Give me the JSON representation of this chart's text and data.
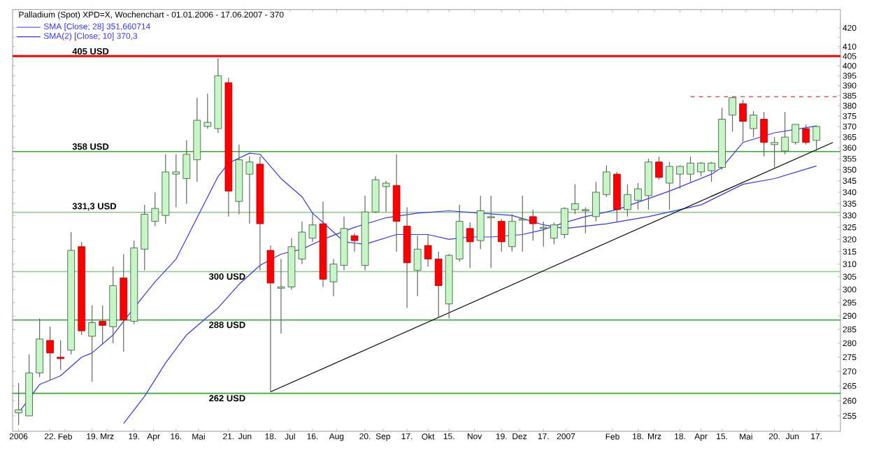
{
  "chart_data": {
    "type": "candlestick",
    "title": "Palladium (Spot) XPD=X, Wochenchart - 01.01.2006 - 17.06.2007 - 370",
    "x": [
      "2006-01-01",
      "2006-01-08",
      "2006-01-15",
      "2006-01-22",
      "2006-01-29",
      "2006-02-05",
      "2006-02-12",
      "2006-02-19",
      "2006-02-26",
      "2006-03-05",
      "2006-03-12",
      "2006-03-19",
      "2006-03-26",
      "2006-04-02",
      "2006-04-09",
      "2006-04-16",
      "2006-04-23",
      "2006-04-30",
      "2006-05-07",
      "2006-05-14",
      "2006-05-21",
      "2006-05-28",
      "2006-06-04",
      "2006-06-11",
      "2006-06-18",
      "2006-06-25",
      "2006-07-02",
      "2006-07-09",
      "2006-07-16",
      "2006-07-23",
      "2006-07-30",
      "2006-08-06",
      "2006-08-13",
      "2006-08-20",
      "2006-08-27",
      "2006-09-03",
      "2006-09-10",
      "2006-09-17",
      "2006-09-24",
      "2006-10-01",
      "2006-10-08",
      "2006-10-15",
      "2006-10-22",
      "2006-10-29",
      "2006-11-05",
      "2006-11-12",
      "2006-11-19",
      "2006-11-26",
      "2006-12-03",
      "2006-12-10",
      "2006-12-17",
      "2006-12-24",
      "2006-12-31",
      "2007-01-07",
      "2007-01-14",
      "2007-01-21",
      "2007-01-28",
      "2007-02-04",
      "2007-02-11",
      "2007-02-18",
      "2007-02-25",
      "2007-03-04",
      "2007-03-11",
      "2007-03-18",
      "2007-03-25",
      "2007-04-01",
      "2007-04-08",
      "2007-04-15",
      "2007-04-22",
      "2007-04-29",
      "2007-05-06",
      "2007-05-13",
      "2007-05-20",
      "2007-05-27",
      "2007-06-03",
      "2007-06-10",
      "2007-06-17"
    ],
    "ohlc": [
      [
        256,
        266,
        252,
        257
      ],
      [
        255,
        276,
        255,
        269.5
      ],
      [
        269.5,
        289,
        268,
        281.5
      ],
      [
        281,
        286,
        267,
        276.5
      ],
      [
        275,
        281,
        270.5,
        274.5
      ],
      [
        277.5,
        323,
        276,
        315.5
      ],
      [
        317,
        319,
        283,
        284.5
      ],
      [
        282.5,
        294,
        266.5,
        287.5
      ],
      [
        288,
        294,
        279.5,
        286.5
      ],
      [
        286,
        309,
        280,
        301.5
      ],
      [
        304.5,
        314,
        277,
        288.5
      ],
      [
        288,
        319.5,
        287,
        316.5
      ],
      [
        316,
        334.5,
        307.5,
        330.5
      ],
      [
        327.5,
        340,
        325.5,
        333
      ],
      [
        330,
        357,
        326.5,
        349
      ],
      [
        348,
        357,
        333.5,
        349
      ],
      [
        346,
        363.5,
        335,
        357
      ],
      [
        354.5,
        384,
        344.5,
        373
      ],
      [
        370,
        386,
        369,
        372
      ],
      [
        369,
        404,
        367,
        395
      ],
      [
        391.5,
        394,
        329.5,
        340.5
      ],
      [
        336,
        361.5,
        330.5,
        354.5
      ],
      [
        348,
        356,
        326.5,
        353.5
      ],
      [
        352.5,
        356,
        307.5,
        326.5
      ],
      [
        315.5,
        317.5,
        263,
        302.5
      ],
      [
        300.5,
        312,
        283.5,
        301
      ],
      [
        301,
        320.5,
        300,
        317
      ],
      [
        312,
        327.5,
        310,
        323
      ],
      [
        320.5,
        331.5,
        319,
        326
      ],
      [
        326.5,
        336,
        301,
        304
      ],
      [
        303,
        312,
        297.5,
        310
      ],
      [
        309.5,
        329.5,
        307.5,
        324.5
      ],
      [
        321.5,
        322.5,
        315,
        319.5
      ],
      [
        309.5,
        338.5,
        307.5,
        331.5
      ],
      [
        331.5,
        347,
        331,
        345.5
      ],
      [
        342.5,
        345,
        331.5,
        344
      ],
      [
        343,
        357,
        315,
        327.5
      ],
      [
        325.5,
        333.5,
        293,
        310.5
      ],
      [
        307.5,
        321.5,
        297.5,
        316
      ],
      [
        317.5,
        322,
        309,
        312
      ],
      [
        312,
        315,
        289.5,
        301.5
      ],
      [
        294.5,
        314,
        289,
        313.5
      ],
      [
        312,
        334.5,
        311,
        327.5
      ],
      [
        324.5,
        327,
        308.5,
        319
      ],
      [
        319.5,
        338.5,
        316,
        332
      ],
      [
        329,
        338.5,
        308.5,
        329.5
      ],
      [
        327.5,
        328.5,
        315,
        319
      ],
      [
        317,
        330.5,
        315,
        327.5
      ],
      [
        328,
        338.5,
        315,
        328.5
      ],
      [
        329.5,
        332.5,
        319.5,
        326.5
      ],
      [
        324.5,
        327.5,
        317,
        325
      ],
      [
        320.5,
        327,
        318,
        326
      ],
      [
        322,
        333.5,
        320.5,
        333
      ],
      [
        332.5,
        343.5,
        330.5,
        335
      ],
      [
        332,
        333.5,
        322.5,
        332.5
      ],
      [
        329.5,
        344.5,
        327.5,
        340
      ],
      [
        339,
        352,
        338,
        349
      ],
      [
        348,
        349,
        327.5,
        332.5
      ],
      [
        332.5,
        343.5,
        329.5,
        339
      ],
      [
        336.5,
        344,
        332.5,
        341.5
      ],
      [
        338.5,
        355,
        332.5,
        353.5
      ],
      [
        353.5,
        356,
        345.5,
        346.5
      ],
      [
        344,
        353.5,
        332.5,
        351.5
      ],
      [
        348,
        352,
        341.5,
        351.5
      ],
      [
        348,
        356,
        344.5,
        353
      ],
      [
        349,
        353.5,
        347,
        353
      ],
      [
        349.5,
        353.5,
        344.5,
        353
      ],
      [
        351,
        379,
        350,
        373.5
      ],
      [
        375.5,
        384.5,
        367.5,
        384
      ],
      [
        381,
        383,
        363,
        372.5
      ],
      [
        369,
        377.5,
        365,
        375.5
      ],
      [
        373.5,
        377,
        356,
        362.5
      ],
      [
        361.5,
        365,
        351,
        362.5
      ],
      [
        358.5,
        377,
        357,
        365
      ],
      [
        362.5,
        371,
        361.5,
        371
      ],
      [
        369,
        371,
        361.5,
        362.5
      ],
      [
        363.5,
        370.5,
        358.5,
        370
      ]
    ],
    "series": [
      {
        "type": "line",
        "name": "SMA [Close; 28] 351,660714",
        "color": "#3333ff",
        "x": [
          "2006-03-12",
          "2006-03-26",
          "2006-04-09",
          "2006-04-23",
          "2006-05-14",
          "2006-05-28",
          "2006-06-11",
          "2006-06-25",
          "2006-07-09",
          "2006-07-23",
          "2006-08-13",
          "2006-09-03",
          "2006-09-24",
          "2006-10-15",
          "2006-11-05",
          "2006-11-26",
          "2006-12-17",
          "2006-12-31",
          "2007-01-28",
          "2007-02-25",
          "2007-04-01",
          "2007-04-29",
          "2007-05-20",
          "2007-06-17"
        ],
        "values": [
          252.5,
          261.5,
          273,
          283,
          293,
          302,
          309.5,
          314,
          316,
          320,
          325,
          329,
          331,
          332,
          331,
          330,
          326,
          324.5,
          326.5,
          329.5,
          334.5,
          343.5,
          346,
          351.7
        ]
      },
      {
        "type": "line",
        "name": "SMA(2) [Close; 10] 370,3",
        "color": "#3333ff",
        "x": [
          "2006-01-01",
          "2006-01-15",
          "2006-01-29",
          "2006-02-12",
          "2006-02-19",
          "2006-03-05",
          "2006-03-12",
          "2006-03-26",
          "2006-04-02",
          "2006-04-16",
          "2006-04-30",
          "2006-05-14",
          "2006-05-21",
          "2006-06-04",
          "2006-06-11",
          "2006-06-25",
          "2006-07-09",
          "2006-07-16",
          "2006-07-30",
          "2006-08-06",
          "2006-08-20",
          "2006-09-10",
          "2006-10-01",
          "2006-10-15",
          "2006-10-29",
          "2006-11-12",
          "2006-12-03",
          "2006-12-17",
          "2006-12-31",
          "2007-01-14",
          "2007-02-04",
          "2007-03-11",
          "2007-04-08",
          "2007-04-15",
          "2007-04-29",
          "2007-05-20",
          "2007-06-17"
        ],
        "values": [
          256,
          265.5,
          268.5,
          275,
          276.5,
          283,
          288,
          298,
          303,
          312,
          329,
          347,
          353,
          357.5,
          357,
          346,
          338,
          331,
          323,
          319,
          318,
          322,
          322,
          320,
          321,
          321,
          322,
          324,
          327,
          329.5,
          332.5,
          340.5,
          348,
          351,
          362.5,
          367,
          370.3
        ]
      },
      {
        "type": "line",
        "color": "#000000",
        "line_style": "solid",
        "x": [
          "2006-06-18",
          "2007-06-28"
        ],
        "values": [
          263,
          362.5
        ]
      },
      {
        "type": "line",
        "color": "#ff0000",
        "line_style": "dashed",
        "x": [
          "2007-03-25",
          "2007-07-03"
        ],
        "values": [
          384.5,
          384.5
        ]
      }
    ],
    "ref_lines": [
      {
        "axis": "y",
        "value": 405,
        "label": "405 USD",
        "color": "#ff0000"
      },
      {
        "axis": "y",
        "value": 358.3,
        "label": "358 USD",
        "color": "#33aa33"
      },
      {
        "axis": "y",
        "value": 331.3,
        "label": "331,3 USD",
        "color": "#88cc88"
      },
      {
        "axis": "y",
        "value": 307,
        "label": "300 USD",
        "color": "#88cc88"
      },
      {
        "axis": "y",
        "value": 288.5,
        "label": "288 USD",
        "color": "#33aa33"
      },
      {
        "axis": "y",
        "value": 262.5,
        "label": "262 USD",
        "color": "#33aa33"
      }
    ],
    "log": true,
    "legend": "top left",
    "marker": "none",
    "xlim": [
      "2005-12-28",
      "2007-07-03"
    ],
    "xticks": [
      {
        "value": "2006-01-01",
        "label": "2006"
      },
      {
        "value": "2006-01-22",
        "label": "22."
      },
      {
        "value": "2006-02-01",
        "label": "Feb"
      },
      {
        "value": "2006-02-19",
        "label": "19."
      },
      {
        "value": "2006-03-01",
        "label": "Mrz"
      },
      {
        "value": "2006-03-19",
        "label": "19."
      },
      {
        "value": "2006-04-01",
        "label": "Apr"
      },
      {
        "value": "2006-04-16",
        "label": "16."
      },
      {
        "value": "2006-05-01",
        "label": "Mai"
      },
      {
        "value": "2006-05-21",
        "label": "21."
      },
      {
        "value": "2006-06-01",
        "label": "Jun"
      },
      {
        "value": "2006-06-18",
        "label": "18."
      },
      {
        "value": "2006-07-01",
        "label": "Jul"
      },
      {
        "value": "2006-07-16",
        "label": "16."
      },
      {
        "value": "2006-08-01",
        "label": "Aug"
      },
      {
        "value": "2006-08-20",
        "label": "20."
      },
      {
        "value": "2006-09-01",
        "label": "Sep"
      },
      {
        "value": "2006-09-17",
        "label": "17."
      },
      {
        "value": "2006-10-01",
        "label": "Okt"
      },
      {
        "value": "2006-10-15",
        "label": "15."
      },
      {
        "value": "2006-11-01",
        "label": "Nov"
      },
      {
        "value": "2006-11-19",
        "label": "19."
      },
      {
        "value": "2006-12-01",
        "label": "Dez"
      },
      {
        "value": "2006-12-17",
        "label": "17."
      },
      {
        "value": "2007-01-01",
        "label": "2007"
      },
      {
        "value": "2007-02-01",
        "label": "Feb"
      },
      {
        "value": "2007-02-18",
        "label": "18."
      },
      {
        "value": "2007-03-01",
        "label": "Mrz"
      },
      {
        "value": "2007-03-18",
        "label": "18."
      },
      {
        "value": "2007-04-01",
        "label": "Apr"
      },
      {
        "value": "2007-04-15",
        "label": "15."
      },
      {
        "value": "2007-05-01",
        "label": "Mai"
      },
      {
        "value": "2007-05-20",
        "label": "20."
      },
      {
        "value": "2007-06-01",
        "label": "Jun"
      },
      {
        "value": "2007-06-17",
        "label": "17."
      }
    ],
    "ylim": [
      250,
      430
    ],
    "yticks": [
      255,
      260,
      265,
      270,
      275,
      280,
      285,
      290,
      295,
      300,
      305,
      310,
      315,
      320,
      325,
      330,
      335,
      340,
      345,
      350,
      355,
      360,
      365,
      370,
      375,
      380,
      385,
      390,
      395,
      400,
      405,
      410,
      {
        "value": 415,
        "label": null
      },
      420
    ]
  }
}
